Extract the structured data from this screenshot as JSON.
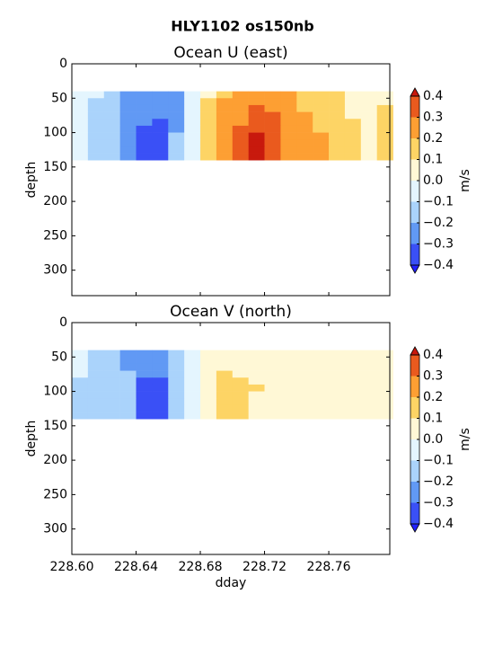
{
  "title": "HLY1102 os150nb",
  "chart_data": [
    {
      "type": "contourf",
      "title": "Ocean U (east)",
      "ylabel": "depth",
      "xlim": [
        228.6,
        228.798
      ],
      "ylim": [
        337,
        0
      ],
      "xticks": [
        228.6,
        228.64,
        228.68,
        228.72,
        228.76
      ],
      "yticks": [
        0,
        50,
        100,
        150,
        200,
        250,
        300
      ],
      "x": [
        228.605,
        228.615,
        228.625,
        228.635,
        228.645,
        228.655,
        228.665,
        228.675,
        228.685,
        228.695,
        228.705,
        228.715,
        228.725,
        228.735,
        228.745,
        228.755,
        228.765,
        228.775,
        228.785,
        228.795
      ],
      "depth": [
        45,
        55,
        65,
        75,
        85,
        95,
        105,
        115,
        125,
        135
      ],
      "z": [
        [
          -0.05,
          -0.05,
          -0.15,
          -0.25,
          -0.25,
          -0.25,
          -0.25,
          -0.05,
          0.05,
          0.15,
          0.25,
          0.25,
          0.25,
          0.25,
          0.15,
          0.15,
          0.15,
          0.05,
          0.05,
          0.05
        ],
        [
          -0.05,
          -0.15,
          -0.15,
          -0.25,
          -0.25,
          -0.25,
          -0.25,
          -0.05,
          0.15,
          0.25,
          0.25,
          0.25,
          0.25,
          0.25,
          0.15,
          0.15,
          0.15,
          0.05,
          0.05,
          0.05
        ],
        [
          -0.05,
          -0.15,
          -0.15,
          -0.25,
          -0.25,
          -0.25,
          -0.25,
          -0.05,
          0.15,
          0.25,
          0.25,
          0.35,
          0.25,
          0.25,
          0.15,
          0.15,
          0.15,
          0.05,
          0.05,
          0.15
        ],
        [
          -0.05,
          -0.15,
          -0.15,
          -0.25,
          -0.25,
          -0.25,
          -0.25,
          -0.05,
          0.15,
          0.25,
          0.25,
          0.35,
          0.35,
          0.25,
          0.25,
          0.15,
          0.15,
          0.05,
          0.05,
          0.15
        ],
        [
          -0.05,
          -0.15,
          -0.15,
          -0.25,
          -0.25,
          -0.35,
          -0.25,
          -0.05,
          0.15,
          0.25,
          0.25,
          0.35,
          0.35,
          0.25,
          0.25,
          0.15,
          0.15,
          0.15,
          0.05,
          0.15
        ],
        [
          -0.05,
          -0.15,
          -0.15,
          -0.25,
          -0.35,
          -0.35,
          -0.25,
          -0.05,
          0.15,
          0.25,
          0.35,
          0.35,
          0.35,
          0.25,
          0.25,
          0.15,
          0.15,
          0.15,
          0.05,
          0.15
        ],
        [
          -0.05,
          -0.15,
          -0.15,
          -0.25,
          -0.35,
          -0.35,
          -0.15,
          -0.05,
          0.15,
          0.25,
          0.35,
          0.45,
          0.35,
          0.25,
          0.25,
          0.25,
          0.15,
          0.15,
          0.05,
          0.15
        ],
        [
          -0.05,
          -0.15,
          -0.15,
          -0.25,
          -0.35,
          -0.35,
          -0.15,
          -0.05,
          0.15,
          0.25,
          0.35,
          0.45,
          0.35,
          0.25,
          0.25,
          0.25,
          0.15,
          0.15,
          0.05,
          0.15
        ],
        [
          -0.05,
          -0.15,
          -0.15,
          -0.25,
          -0.35,
          -0.35,
          -0.15,
          -0.05,
          0.15,
          0.25,
          0.35,
          0.45,
          0.35,
          0.25,
          0.25,
          0.25,
          0.15,
          0.15,
          0.05,
          0.15
        ],
        [
          -0.05,
          -0.15,
          -0.15,
          -0.25,
          -0.35,
          -0.35,
          -0.15,
          -0.05,
          0.15,
          0.25,
          0.35,
          0.45,
          0.35,
          0.25,
          0.25,
          0.25,
          0.15,
          0.15,
          0.05,
          0.15
        ]
      ],
      "colorbar": {
        "label": "m/s",
        "levels": [
          {
            "value": -0.4,
            "label": "−0.4"
          },
          {
            "value": -0.3,
            "label": "−0.3"
          },
          {
            "value": -0.2,
            "label": "−0.2"
          },
          {
            "value": -0.1,
            "label": "−0.1"
          },
          {
            "value": 0,
            "label": "0.0"
          },
          0.1,
          0.2,
          0.3,
          0.4
        ],
        "colors": [
          "#3a50f6",
          "#6199f4",
          "#aad3fb",
          "#e4f5fe",
          "#fff8d6",
          "#fdd465",
          "#fd9f33",
          "#ea5a1e"
        ],
        "under_color": "#2222ff",
        "over_color": "#c8190d"
      }
    },
    {
      "type": "contourf",
      "title": "Ocean V (north)",
      "ylabel": "depth",
      "xlabel": "dday",
      "xlim": [
        228.6,
        228.798
      ],
      "ylim": [
        337,
        0
      ],
      "xticks": [
        {
          "value": 228.6,
          "label": "228.60"
        },
        228.64,
        228.68,
        228.72,
        228.76
      ],
      "yticks": [
        0,
        50,
        100,
        150,
        200,
        250,
        300
      ],
      "x": [
        228.605,
        228.615,
        228.625,
        228.635,
        228.645,
        228.655,
        228.665,
        228.675,
        228.685,
        228.695,
        228.705,
        228.715,
        228.725,
        228.735,
        228.745,
        228.755,
        228.765,
        228.775,
        228.785,
        228.795
      ],
      "depth": [
        45,
        55,
        65,
        75,
        85,
        95,
        105,
        115,
        125,
        135
      ],
      "z": [
        [
          -0.05,
          -0.15,
          -0.15,
          -0.25,
          -0.25,
          -0.25,
          -0.15,
          -0.05,
          0.05,
          0.05,
          0.05,
          0.05,
          0.05,
          0.05,
          0.05,
          0.05,
          0.05,
          0.05,
          0.05,
          0.05
        ],
        [
          -0.05,
          -0.15,
          -0.15,
          -0.25,
          -0.25,
          -0.25,
          -0.15,
          -0.05,
          0.05,
          0.05,
          0.05,
          0.05,
          0.05,
          0.05,
          0.05,
          0.05,
          0.05,
          0.05,
          0.05,
          0.05
        ],
        [
          -0.05,
          -0.15,
          -0.15,
          -0.25,
          -0.25,
          -0.25,
          -0.15,
          -0.05,
          0.05,
          0.05,
          0.05,
          0.05,
          0.05,
          0.05,
          0.05,
          0.05,
          0.05,
          0.05,
          0.05,
          0.05
        ],
        [
          -0.05,
          -0.15,
          -0.15,
          -0.15,
          -0.25,
          -0.25,
          -0.15,
          -0.05,
          0.05,
          0.15,
          0.05,
          0.05,
          0.05,
          0.05,
          0.05,
          0.05,
          0.05,
          0.05,
          0.05,
          0.05
        ],
        [
          -0.15,
          -0.15,
          -0.15,
          -0.15,
          -0.35,
          -0.35,
          -0.15,
          -0.05,
          0.05,
          0.15,
          0.15,
          0.05,
          0.05,
          0.05,
          0.05,
          0.05,
          0.05,
          0.05,
          0.05,
          0.05
        ],
        [
          -0.15,
          -0.15,
          -0.15,
          -0.15,
          -0.35,
          -0.35,
          -0.15,
          -0.05,
          0.05,
          0.15,
          0.15,
          0.15,
          0.05,
          0.05,
          0.05,
          0.05,
          0.05,
          0.05,
          0.05,
          0.05
        ],
        [
          -0.15,
          -0.15,
          -0.15,
          -0.15,
          -0.35,
          -0.35,
          -0.15,
          -0.05,
          0.05,
          0.15,
          0.15,
          0.05,
          0.05,
          0.05,
          0.05,
          0.05,
          0.05,
          0.05,
          0.05,
          0.05
        ],
        [
          -0.15,
          -0.15,
          -0.15,
          -0.15,
          -0.35,
          -0.35,
          -0.15,
          -0.05,
          0.05,
          0.15,
          0.15,
          0.05,
          0.05,
          0.05,
          0.05,
          0.05,
          0.05,
          0.05,
          0.05,
          0.05
        ],
        [
          -0.15,
          -0.15,
          -0.15,
          -0.15,
          -0.35,
          -0.35,
          -0.15,
          -0.05,
          0.05,
          0.15,
          0.15,
          0.05,
          0.05,
          0.05,
          0.05,
          0.05,
          0.05,
          0.05,
          0.05,
          0.05
        ],
        [
          -0.15,
          -0.15,
          -0.15,
          -0.15,
          -0.35,
          -0.35,
          -0.15,
          -0.05,
          0.05,
          0.15,
          0.15,
          0.05,
          0.05,
          0.05,
          0.05,
          0.05,
          0.05,
          0.05,
          0.05,
          0.05
        ]
      ],
      "colorbar": {
        "label": "m/s",
        "levels": [
          {
            "value": -0.4,
            "label": "−0.4"
          },
          {
            "value": -0.3,
            "label": "−0.3"
          },
          {
            "value": -0.2,
            "label": "−0.2"
          },
          {
            "value": -0.1,
            "label": "−0.1"
          },
          {
            "value": 0,
            "label": "0.0"
          },
          0.1,
          0.2,
          0.3,
          0.4
        ],
        "colors": [
          "#3a50f6",
          "#6199f4",
          "#aad3fb",
          "#e4f5fe",
          "#fff8d6",
          "#fdd465",
          "#fd9f33",
          "#ea5a1e"
        ],
        "under_color": "#2222ff",
        "over_color": "#c8190d"
      }
    }
  ]
}
